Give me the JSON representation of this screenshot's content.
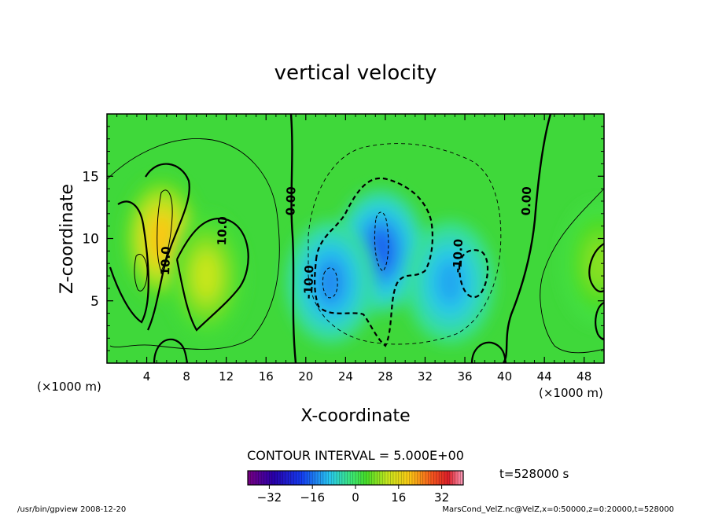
{
  "chart_data": {
    "type": "heatmap",
    "title": "vertical velocity",
    "xlabel": "X-coordinate",
    "ylabel": "Z-coordinate",
    "x_unit": "(×1000 m)",
    "y_unit": "(×1000 m)",
    "xlim": [
      0,
      50
    ],
    "ylim": [
      0,
      20
    ],
    "x_ticks": [
      4,
      8,
      12,
      16,
      20,
      24,
      28,
      32,
      36,
      40,
      44,
      48
    ],
    "y_ticks": [
      5,
      10,
      15
    ],
    "contour_interval_text": "CONTOUR INTERVAL = 5.000E+00",
    "contour_labels": [
      {
        "text": "0.00",
        "x": 18.9,
        "z": 13.0
      },
      {
        "text": "0.00",
        "x": 42.6,
        "z": 13.0
      },
      {
        "text": "10.0",
        "x": 12.0,
        "z": 10.6
      },
      {
        "text": "10.0",
        "x": 6.3,
        "z": 8.2
      },
      {
        "text": "-10.0",
        "x": 20.7,
        "z": 6.5
      },
      {
        "text": "-10.0",
        "x": 35.7,
        "z": 8.6
      }
    ],
    "colorbar": {
      "min": -40,
      "max": 40,
      "ticks": [
        -32,
        -16,
        0,
        16,
        32
      ],
      "tick_labels": [
        "−32",
        "−16",
        "0",
        "16",
        "32"
      ]
    },
    "time_label": "t=528000 s",
    "features": [
      {
        "sign": "positive",
        "x": 5.5,
        "z": 10.0,
        "peak": 20
      },
      {
        "sign": "positive",
        "x": 10.0,
        "z": 7.0,
        "peak": 12
      },
      {
        "sign": "negative",
        "x": 27.5,
        "z": 9.0,
        "peak": -17
      },
      {
        "sign": "negative",
        "x": 22.5,
        "z": 6.5,
        "peak": -14
      },
      {
        "sign": "negative",
        "x": 34.5,
        "z": 6.5,
        "peak": -12
      },
      {
        "sign": "positive",
        "x": 49.5,
        "z": 8.0,
        "peak": 8
      }
    ]
  },
  "footer": {
    "left": "/usr/bin/gpview   2008-12-20",
    "right": "MarsCond_VelZ.nc@VelZ,x=0:50000,z=0:20000,t=528000"
  }
}
